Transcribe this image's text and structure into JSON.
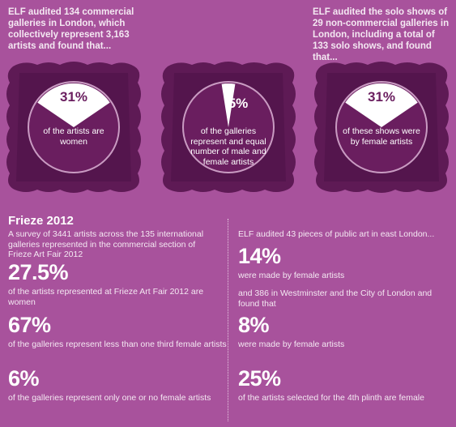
{
  "intro_left": "ELF audited 134 commercial galleries in London, which collectively represent 3,163 artists and found that...",
  "intro_right": "ELF audited the solo shows of 29 non-commercial galleries in London, including a total of 133 solo shows, and found that...",
  "frames": [
    {
      "percent": "31%",
      "fraction": 0.31,
      "caption": "of the artists are women"
    },
    {
      "percent": "5%",
      "fraction": 0.05,
      "caption": "of the galleries represent and equal number of male and female artists"
    },
    {
      "percent": "31%",
      "fraction": 0.31,
      "caption": "of these shows were by female artists"
    }
  ],
  "frieze": {
    "title": "Frieze 2012",
    "intro": "A survey of 3441 artists across the 135 international galleries represented in the commercial section of Frieze Art Fair 2012",
    "stats": [
      {
        "value": "27.5%",
        "text": "of the artists represented at Frieze Art Fair 2012 are women"
      },
      {
        "value": "67%",
        "text": "of the galleries represent less than one third female artists"
      },
      {
        "value": "6%",
        "text": "of the galleries represent only one or no female artists"
      }
    ]
  },
  "public_art": {
    "intro": "ELF audited 43 pieces of public art in east London...",
    "stat1": {
      "value": "14%",
      "text": "were made by female artists"
    },
    "middle": "and 386  in Westminster and the City of London and found that",
    "stat2": {
      "value": "8%",
      "text": "were made by female artists"
    },
    "stat3": {
      "value": "25%",
      "text": "of the artists selected for the 4th plinth are female"
    }
  },
  "colors": {
    "background": "#a8529c",
    "frame": "#5e1a55",
    "wedge": "#ffffff"
  }
}
